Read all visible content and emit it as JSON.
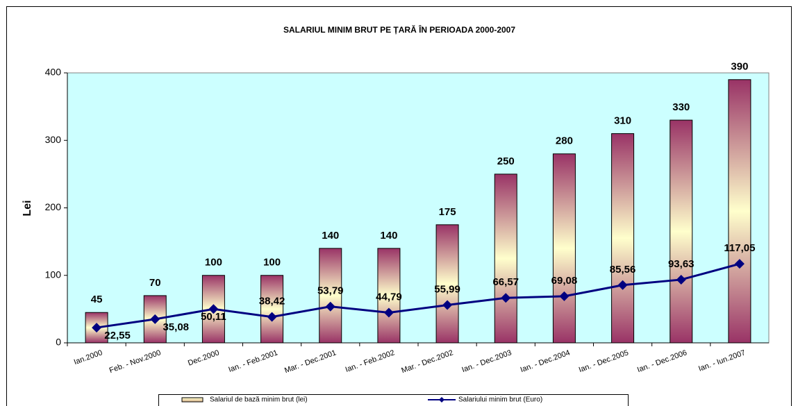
{
  "chart_data": {
    "type": "bar",
    "title": "SALARIUL MINIM BRUT PE ȚARĂ ÎN PERIOADA 2000-2007",
    "y_label": "Lei",
    "categories": [
      "Ian.2000",
      "Feb. - Nov.2000",
      "Dec.2000",
      "Ian. - Feb.2001",
      "Mar. - Dec.2001",
      "Ian. - Feb.2002",
      "Mar. - Dec.2002",
      "Ian. - Dec.2003",
      "Ian. - Dec.2004",
      "Ian. - Dec.2005",
      "Ian. - Dec.2006",
      "Ian. - Iun.2007"
    ],
    "series": [
      {
        "name": "Salariul de bază minim brut (lei)",
        "type": "bar",
        "color": "#993366",
        "values": [
          45,
          70,
          100,
          100,
          140,
          140,
          175,
          250,
          280,
          310,
          330,
          390
        ]
      },
      {
        "name": "Salariului minim brut (Euro)",
        "type": "line",
        "color": "#000080",
        "values": [
          22.55,
          35.08,
          50.11,
          38.42,
          53.79,
          44.79,
          55.99,
          66.57,
          69.08,
          85.56,
          93.63,
          117.05
        ],
        "value_labels": [
          "22,55",
          "35,08",
          "50,11",
          "38,42",
          "53,79",
          "44,79",
          "55,99",
          "66,57",
          "69,08",
          "85,56",
          "93,63",
          "117,05"
        ]
      }
    ],
    "ylim": [
      0,
      400
    ],
    "yticks": [
      0,
      100,
      200,
      300,
      400
    ],
    "legend": "bottom"
  }
}
